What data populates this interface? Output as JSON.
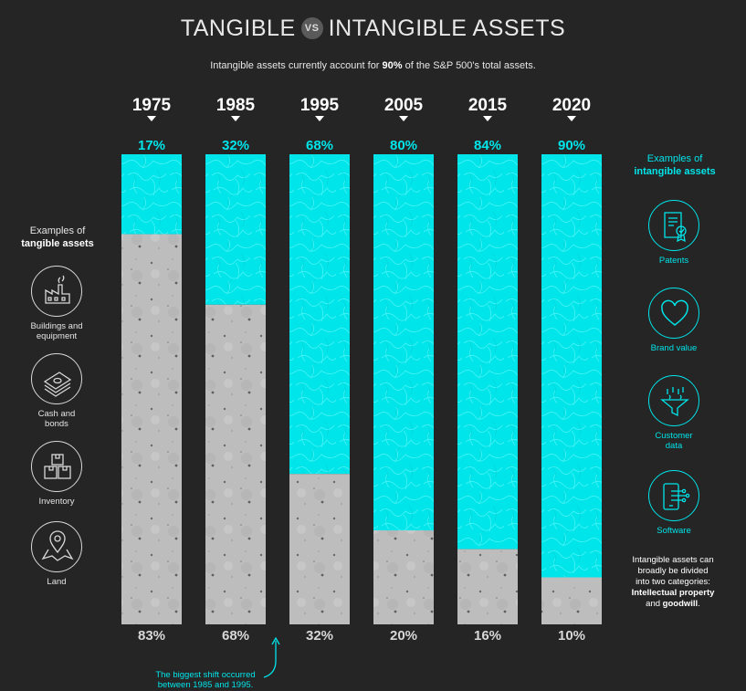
{
  "title": {
    "left": "TANGIBLE",
    "vs": "VS",
    "right": "INTANGIBLE ASSETS"
  },
  "subtitle": {
    "pre": "Intangible assets currently account for ",
    "bold": "90%",
    "post": " of the S&P 500's total assets."
  },
  "colors": {
    "background": "#252525",
    "intangible": "#00e5ea",
    "tangible": "#bdbdbd",
    "text": "#ffffff"
  },
  "chart_data": {
    "type": "bar",
    "stacked": true,
    "orientation": "vertical",
    "categories": [
      "1975",
      "1985",
      "1995",
      "2005",
      "2015",
      "2020"
    ],
    "series": [
      {
        "values": [
          17,
          32,
          68,
          80,
          84,
          90
        ]
      },
      {
        "values": [
          83,
          68,
          32,
          20,
          16,
          10
        ]
      }
    ],
    "top_labels": [
      "17%",
      "32%",
      "68%",
      "80%",
      "84%",
      "90%"
    ],
    "bottom_labels": [
      "83%",
      "68%",
      "32%",
      "20%",
      "16%",
      "10%"
    ],
    "ylim": [
      0,
      100
    ]
  },
  "tangible": {
    "heading_line1": "Examples of",
    "heading_line2": "tangible assets",
    "items": [
      {
        "icon": "factory-icon",
        "label_line1": "Buildings and",
        "label_line2": "equipment"
      },
      {
        "icon": "cash-icon",
        "label_line1": "Cash and",
        "label_line2": "bonds"
      },
      {
        "icon": "boxes-icon",
        "label_line1": "Inventory",
        "label_line2": ""
      },
      {
        "icon": "map-pin-icon",
        "label_line1": "Land",
        "label_line2": ""
      }
    ]
  },
  "intangible": {
    "heading_line1": "Examples of",
    "heading_line2": "intangible assets",
    "items": [
      {
        "icon": "certificate-icon",
        "label_line1": "Patents",
        "label_line2": ""
      },
      {
        "icon": "heart-icon",
        "label_line1": "Brand value",
        "label_line2": ""
      },
      {
        "icon": "funnel-icon",
        "label_line1": "Customer",
        "label_line2": "data"
      },
      {
        "icon": "tablet-icon",
        "label_line1": "Software",
        "label_line2": ""
      }
    ]
  },
  "note": {
    "line1": "Intangible assets can",
    "line2": "broadly be divided",
    "line3": "into two categories:",
    "bold1": "Intellectual property",
    "and": "and ",
    "bold2": "goodwill",
    "end": "."
  },
  "shift_note": {
    "line1": "The biggest shift occurred",
    "line2": "between 1985 and 1995."
  }
}
